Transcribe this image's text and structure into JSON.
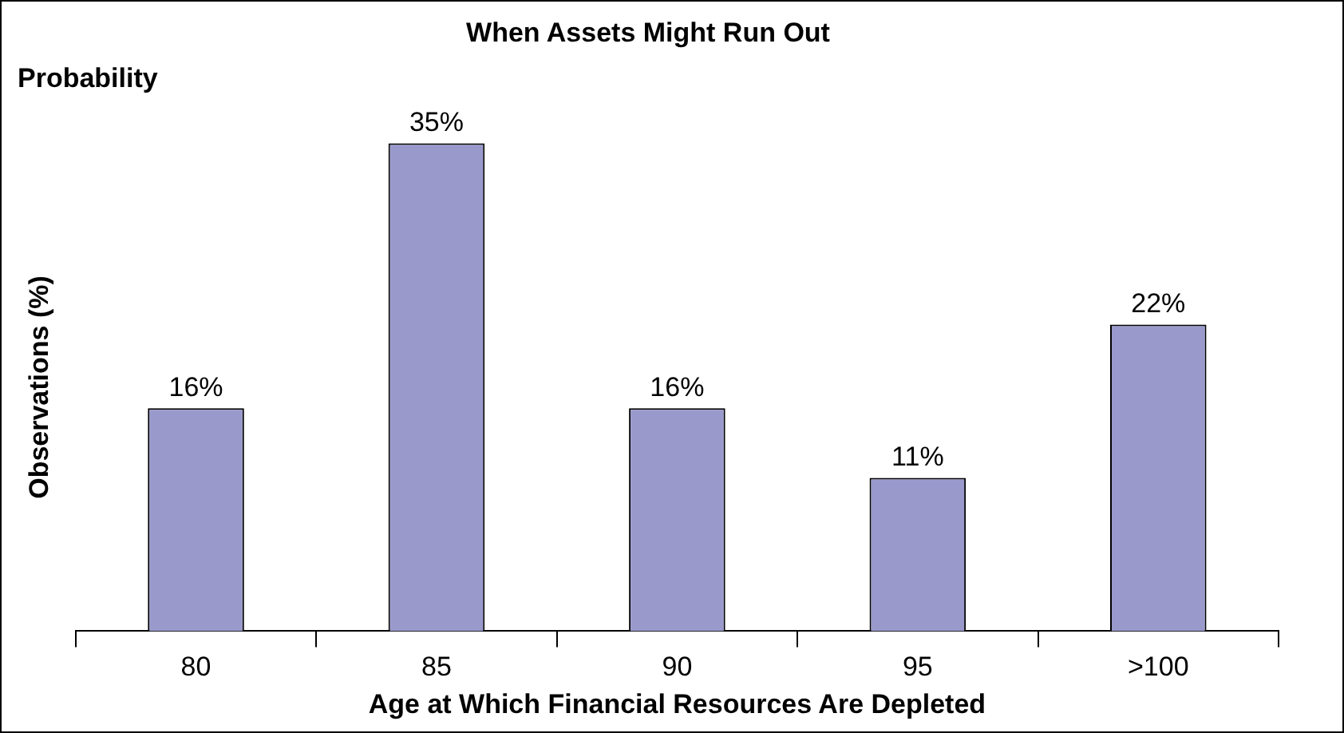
{
  "chart_data": {
    "type": "bar",
    "title": "When Assets Might Run Out",
    "subtitle": "Probability",
    "xlabel": "Age at Which Financial Resources Are Depleted",
    "ylabel": "Observations (%)",
    "categories": [
      "80",
      "85",
      "90",
      "95",
      ">100"
    ],
    "series": [
      {
        "color": "#9999cc",
        "values": [
          16,
          35,
          16,
          11,
          22
        ],
        "value_labels": [
          "16%",
          "35%",
          "16%",
          "11%",
          "22%"
        ]
      }
    ],
    "grid": false,
    "legend": false,
    "tick_labels": "x"
  }
}
